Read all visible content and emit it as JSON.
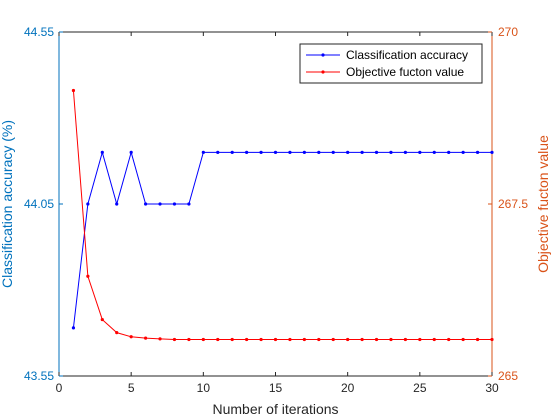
{
  "chart_data": {
    "type": "line",
    "xlabel": "Number of iterations",
    "xlim": [
      0,
      30
    ],
    "xticks": [
      0,
      5,
      10,
      15,
      20,
      25,
      30
    ],
    "left_axis": {
      "label": "Classification accuracy (%)",
      "lim": [
        43.55,
        44.55
      ],
      "ticks": [
        "43.55",
        "44.05",
        "44.55"
      ],
      "color": "#0072BD"
    },
    "right_axis": {
      "label": "Objective fucton value",
      "lim": [
        265,
        270
      ],
      "ticks": [
        "265",
        "267.5",
        "270"
      ],
      "color": "#D95319"
    },
    "grid": false,
    "legend_position": "top-right",
    "series": [
      {
        "name": "Classification accuracy",
        "axis": "left",
        "color": "#0000FF",
        "x": [
          1,
          2,
          3,
          4,
          5,
          6,
          7,
          8,
          9,
          10,
          11,
          12,
          13,
          14,
          15,
          16,
          17,
          18,
          19,
          20,
          21,
          22,
          23,
          24,
          25,
          26,
          27,
          28,
          29,
          30
        ],
        "values": [
          43.69,
          44.05,
          44.2,
          44.05,
          44.2,
          44.05,
          44.05,
          44.05,
          44.05,
          44.2,
          44.2,
          44.2,
          44.2,
          44.2,
          44.2,
          44.2,
          44.2,
          44.2,
          44.2,
          44.2,
          44.2,
          44.2,
          44.2,
          44.2,
          44.2,
          44.2,
          44.2,
          44.2,
          44.2,
          44.2
        ]
      },
      {
        "name": "Objective fucton value",
        "axis": "right",
        "color": "#FF0000",
        "x": [
          1,
          2,
          3,
          4,
          5,
          6,
          7,
          8,
          9,
          10,
          11,
          12,
          13,
          14,
          15,
          16,
          17,
          18,
          19,
          20,
          21,
          22,
          23,
          24,
          25,
          26,
          27,
          28,
          29,
          30
        ],
        "values": [
          269.15,
          266.45,
          265.82,
          265.63,
          265.57,
          265.55,
          265.54,
          265.53,
          265.53,
          265.53,
          265.53,
          265.53,
          265.53,
          265.53,
          265.53,
          265.53,
          265.53,
          265.53,
          265.53,
          265.53,
          265.53,
          265.53,
          265.53,
          265.53,
          265.53,
          265.53,
          265.53,
          265.53,
          265.53,
          265.53
        ]
      }
    ]
  }
}
